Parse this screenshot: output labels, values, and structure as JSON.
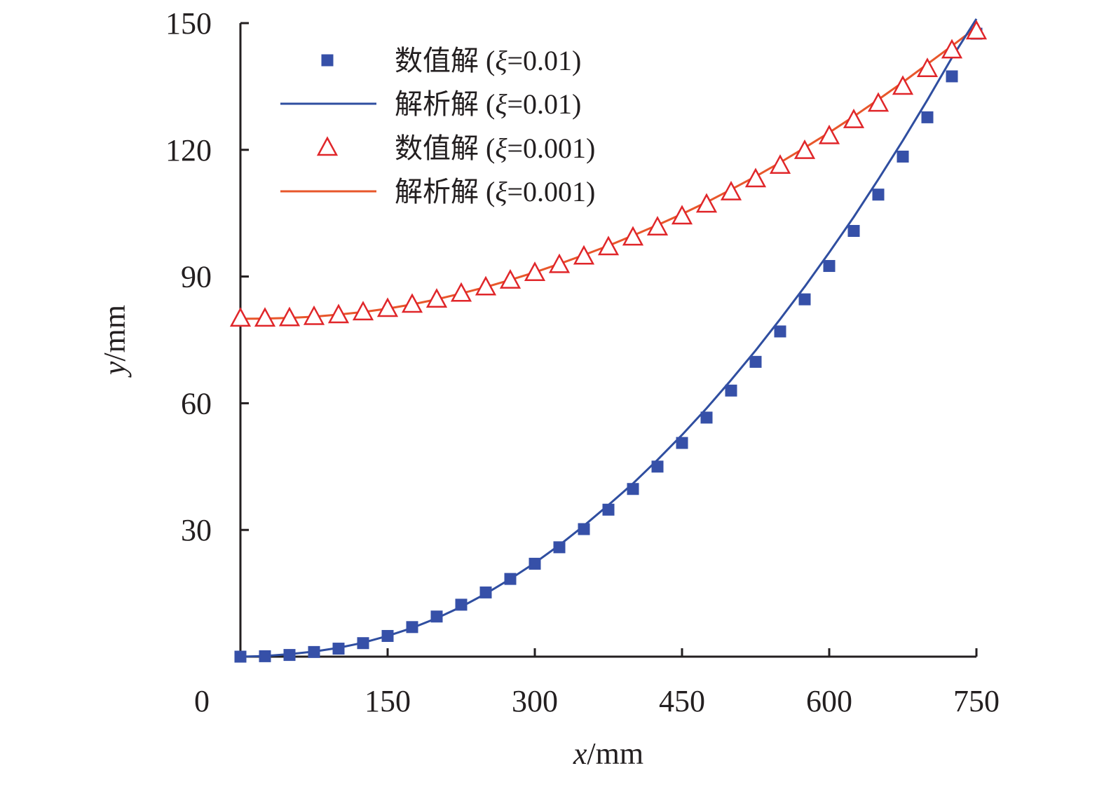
{
  "colors": {
    "axis": "#231f20",
    "series_001": "#e8572b",
    "marker_001": "#e0262a",
    "series_01": "#2f4ea0",
    "marker_01": "#3650a8"
  },
  "chart_data": {
    "type": "line",
    "xlabel": {
      "var": "x",
      "unit": "/mm"
    },
    "ylabel": {
      "var": "y",
      "unit": "/mm"
    },
    "xlim": [
      0,
      750
    ],
    "ylim": [
      0,
      150
    ],
    "xticks": [
      "0",
      "150",
      "300",
      "450",
      "600",
      "750"
    ],
    "yticks": [
      "30",
      "60",
      "90",
      "120",
      "150"
    ],
    "grid": false,
    "legend_position": "top-left",
    "legend": [
      {
        "prefix": "数值解 (",
        "greek": "ξ",
        "suffix": "=0.01)",
        "series": "numerical_01",
        "marker": "square"
      },
      {
        "prefix": "解析解 (",
        "greek": "ξ",
        "suffix": "=0.01)",
        "series": "analytic_01",
        "marker": "line"
      },
      {
        "prefix": "数值解 (",
        "greek": "ξ",
        "suffix": "=0.001)",
        "series": "numerical_001",
        "marker": "triangle"
      },
      {
        "prefix": "解析解 (",
        "greek": "ξ",
        "suffix": "=0.001)",
        "series": "analytic_001",
        "marker": "line"
      }
    ],
    "series": [
      {
        "id": "numerical_01",
        "style": "marker-square",
        "x": [
          0,
          25,
          50,
          75,
          100,
          125,
          150,
          175,
          200,
          225,
          250,
          275,
          300,
          325,
          350,
          375,
          400,
          425,
          450,
          475,
          500,
          525,
          550,
          575,
          600,
          625,
          650,
          675,
          700,
          725,
          750
        ],
        "y": [
          0.0,
          0.1,
          0.4,
          1.1,
          1.9,
          3.2,
          4.9,
          7.0,
          9.5,
          12.3,
          15.2,
          18.4,
          22.0,
          25.9,
          30.2,
          34.8,
          39.7,
          45.0,
          50.6,
          56.6,
          63.0,
          69.8,
          77.0,
          84.6,
          92.5,
          100.8,
          109.4,
          118.4,
          127.7,
          137.4,
          147.5
        ]
      },
      {
        "id": "analytic_01",
        "style": "line",
        "x": [
          0,
          25,
          50,
          75,
          100,
          125,
          150,
          175,
          200,
          225,
          250,
          275,
          300,
          325,
          350,
          375,
          400,
          425,
          450,
          475,
          500,
          525,
          550,
          575,
          600,
          625,
          650,
          675,
          700,
          725,
          750
        ],
        "y": [
          0.0,
          0.15,
          0.6,
          1.2,
          2.1,
          3.3,
          4.9,
          6.8,
          9.1,
          11.8,
          14.9,
          18.4,
          22.2,
          26.4,
          31.0,
          35.9,
          41.0,
          46.6,
          52.5,
          58.8,
          65.5,
          72.5,
          79.9,
          87.6,
          95.7,
          104.1,
          113.0,
          122.2,
          131.8,
          141.8,
          151.0
        ]
      },
      {
        "id": "numerical_001",
        "style": "marker-triangle",
        "x": [
          0,
          25,
          50,
          75,
          100,
          125,
          150,
          175,
          200,
          225,
          250,
          275,
          300,
          325,
          350,
          375,
          400,
          425,
          450,
          475,
          500,
          525,
          550,
          575,
          600,
          625,
          650,
          675,
          700,
          725,
          750
        ],
        "y": [
          80.0,
          80.0,
          80.1,
          80.4,
          80.8,
          81.5,
          82.3,
          83.3,
          84.5,
          85.9,
          87.4,
          89.0,
          90.8,
          92.7,
          94.7,
          96.9,
          99.2,
          101.6,
          104.2,
          107.0,
          109.9,
          113.0,
          116.2,
          119.7,
          123.2,
          127.0,
          130.9,
          134.9,
          139.1,
          143.5,
          148.0
        ]
      },
      {
        "id": "analytic_001",
        "style": "line",
        "x": [
          0,
          25,
          50,
          75,
          100,
          125,
          150,
          175,
          200,
          225,
          250,
          275,
          300,
          325,
          350,
          375,
          400,
          425,
          450,
          475,
          500,
          525,
          550,
          575,
          600,
          625,
          650,
          675,
          700,
          725,
          750
        ],
        "y": [
          80.0,
          80.05,
          80.2,
          80.5,
          81.0,
          81.6,
          82.4,
          83.4,
          84.6,
          86.0,
          87.5,
          89.2,
          91.0,
          93.0,
          95.1,
          97.3,
          99.7,
          102.2,
          104.8,
          107.6,
          110.6,
          113.7,
          117.0,
          120.5,
          124.1,
          127.9,
          131.9,
          136.0,
          140.3,
          144.6,
          149.0
        ]
      }
    ]
  }
}
